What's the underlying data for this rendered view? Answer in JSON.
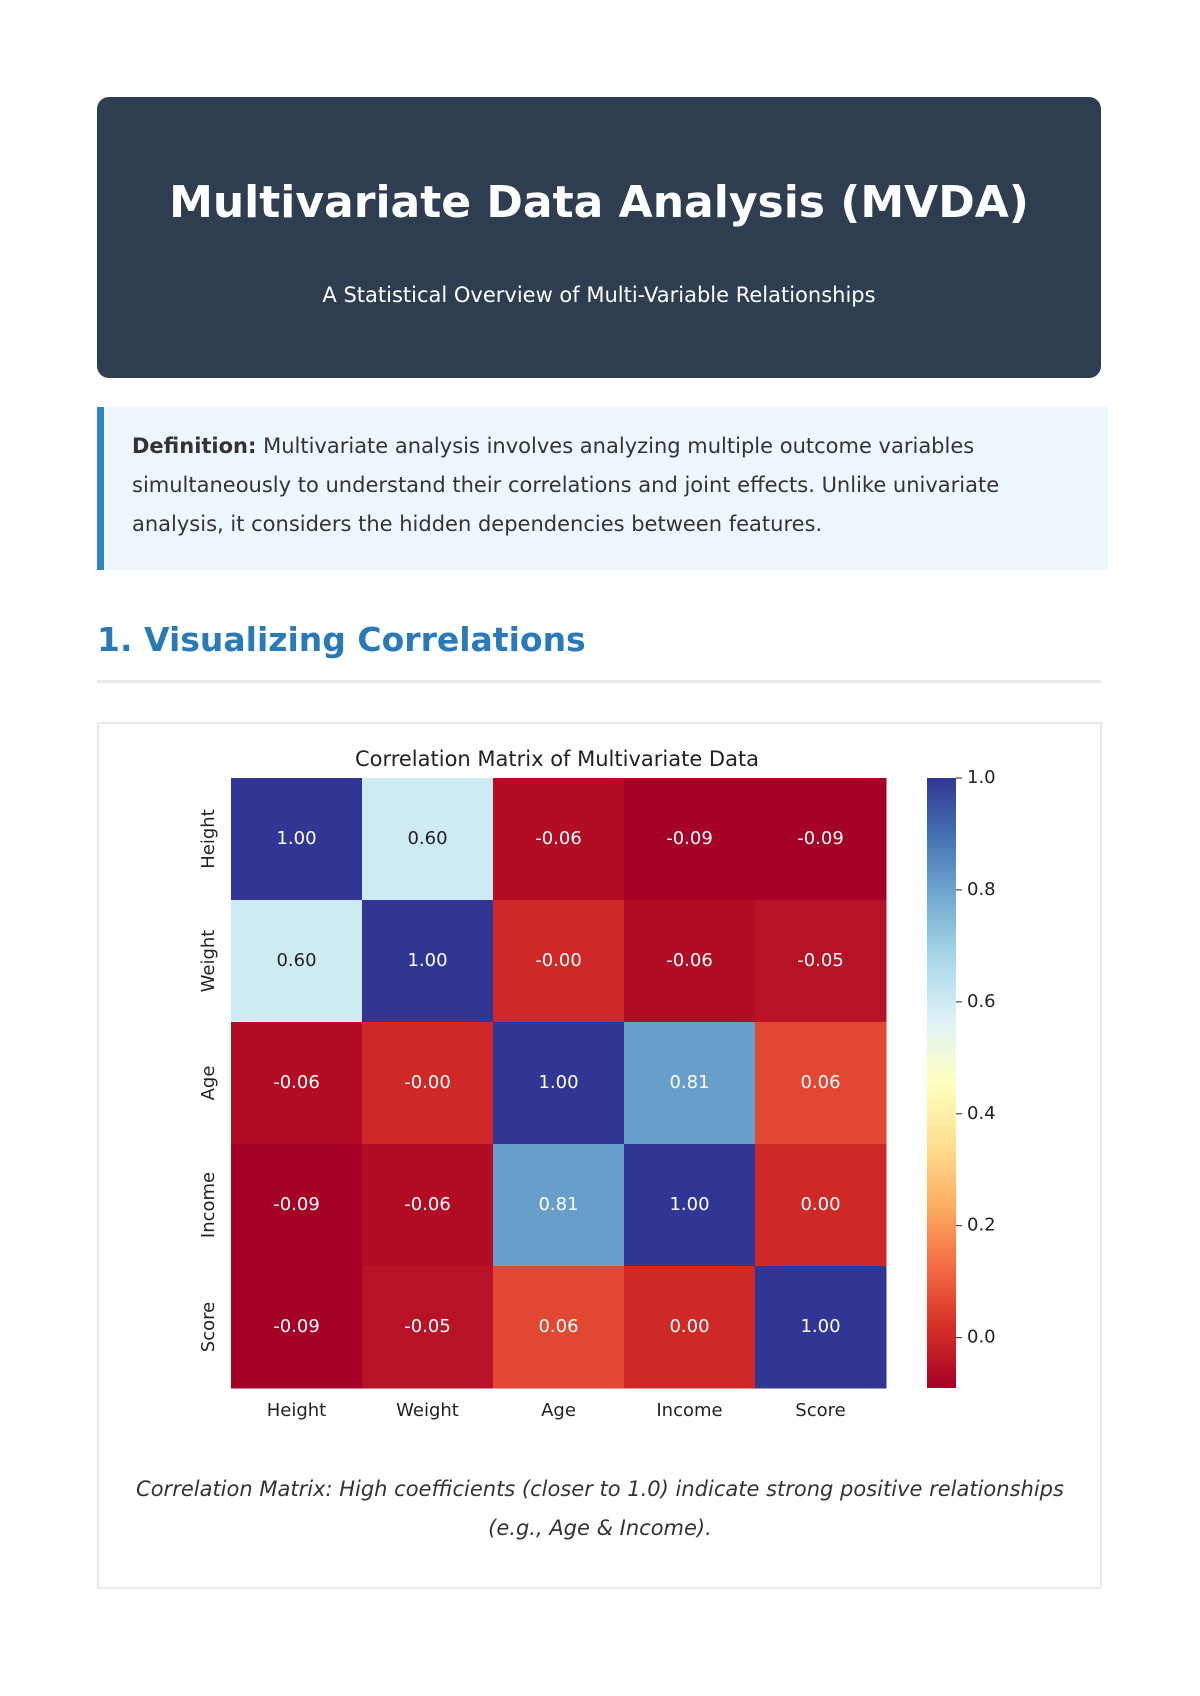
{
  "header": {
    "title": "Multivariate Data Analysis (MVDA)",
    "subtitle": "A Statistical Overview of Multi-Variable Relationships"
  },
  "definition": {
    "label": "Definition:",
    "text": "Multivariate analysis involves analyzing multiple outcome variables simultaneously to understand their correlations and joint effects. Unlike univariate analysis, it considers the hidden dependencies between features."
  },
  "section": {
    "heading": "1. Visualizing Correlations"
  },
  "chart_data": {
    "type": "heatmap",
    "title": "Correlation Matrix of Multivariate Data",
    "rows": [
      "Height",
      "Weight",
      "Age",
      "Income",
      "Score"
    ],
    "columns": [
      "Height",
      "Weight",
      "Age",
      "Income",
      "Score"
    ],
    "values": [
      [
        1.0,
        0.6,
        -0.06,
        -0.09,
        -0.09
      ],
      [
        0.6,
        1.0,
        -0.0,
        -0.06,
        -0.05
      ],
      [
        -0.06,
        -0.0,
        1.0,
        0.81,
        0.06
      ],
      [
        -0.09,
        -0.06,
        0.81,
        1.0,
        0.0
      ],
      [
        -0.09,
        -0.05,
        0.06,
        0.0,
        1.0
      ]
    ],
    "value_labels": [
      [
        "1.00",
        "0.60",
        "-0.06",
        "-0.09",
        "-0.09"
      ],
      [
        "0.60",
        "1.00",
        "-0.00",
        "-0.06",
        "-0.05"
      ],
      [
        "-0.06",
        "-0.00",
        "1.00",
        "0.81",
        "0.06"
      ],
      [
        "-0.09",
        "-0.06",
        "0.81",
        "1.00",
        "0.00"
      ],
      [
        "-0.09",
        "-0.05",
        "0.06",
        "0.00",
        "1.00"
      ]
    ],
    "colormap": "RdYlBu",
    "zlim": [
      -0.09,
      1.0
    ],
    "zticks": [
      {
        "value": 0.0,
        "label": "0.0"
      },
      0.2,
      0.4,
      0.6,
      0.8,
      {
        "value": 1.0,
        "label": "1.0"
      }
    ]
  },
  "caption": "Correlation Matrix: High coefficients (closer to 1.0) indicate strong positive relationships (e.g., Age & Income)."
}
